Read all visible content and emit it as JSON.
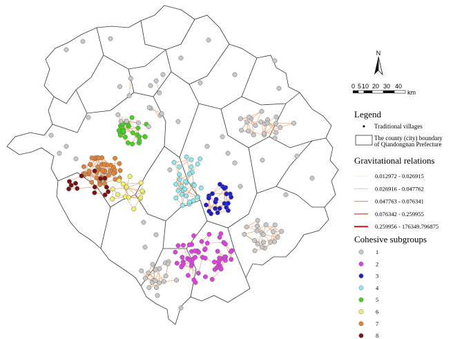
{
  "north_arrow": {
    "label": "N",
    "icon": "north-arrow-icon"
  },
  "scale_bar": {
    "ticks": [
      "0",
      "5",
      "10",
      "20",
      "30",
      "40"
    ],
    "unit": "km"
  },
  "legend": {
    "title": "Legend",
    "village_label": "Traditional villages",
    "boundary_label_1": "The county (city) boundary",
    "boundary_label_2": "of Qiandongnan Prefecture"
  },
  "gravitational": {
    "title": "Gravitational relations",
    "classes": [
      {
        "label": "0.012972 - 0.026915",
        "color": "#f4d7b6"
      },
      {
        "label": "0.026916 - 0.047762",
        "color": "#f0b88a"
      },
      {
        "label": "0.047763 - 0.076341",
        "color": "#e99670"
      },
      {
        "label": "0.076342 - 0.259955",
        "color": "#e0604c"
      },
      {
        "label": "0.259956 - 176349.796875",
        "color": "#e31a1c"
      }
    ]
  },
  "subgroups": {
    "title": "Cohesive subgroups",
    "items": [
      {
        "label": "1",
        "color": "#c8c8c8"
      },
      {
        "label": "2",
        "color": "#e040e0"
      },
      {
        "label": "3",
        "color": "#1f1fc8"
      },
      {
        "label": "4",
        "color": "#8fe8ee"
      },
      {
        "label": "5",
        "color": "#44d41c"
      },
      {
        "label": "6",
        "color": "#f0f070"
      },
      {
        "label": "7",
        "color": "#e0843a"
      },
      {
        "label": "8",
        "color": "#7a1414"
      }
    ]
  }
}
